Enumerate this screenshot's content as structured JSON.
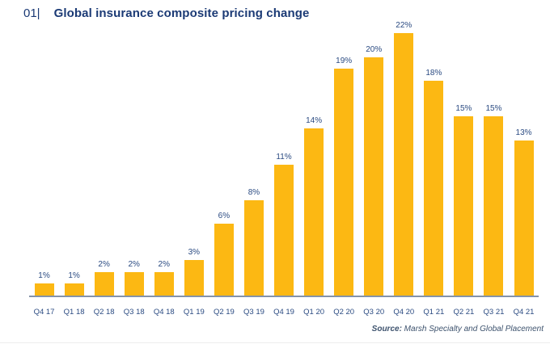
{
  "header": {
    "figure_number": "01|",
    "title": "Global insurance composite pricing change"
  },
  "chart_data": {
    "type": "bar",
    "title": "Global insurance composite pricing change",
    "categories": [
      "Q4 17",
      "Q1 18",
      "Q2 18",
      "Q3 18",
      "Q4 18",
      "Q1 19",
      "Q2 19",
      "Q3 19",
      "Q4 19",
      "Q1 20",
      "Q2 20",
      "Q3 20",
      "Q4 20",
      "Q1 21",
      "Q2 21",
      "Q3 21",
      "Q4 21"
    ],
    "values": [
      1,
      1,
      2,
      2,
      2,
      3,
      6,
      8,
      11,
      14,
      19,
      20,
      22,
      18,
      15,
      15,
      13
    ],
    "value_labels": [
      "1%",
      "1%",
      "2%",
      "2%",
      "2%",
      "3%",
      "6%",
      "8%",
      "11%",
      "14%",
      "19%",
      "20%",
      "22%",
      "18%",
      "15%",
      "15%",
      "13%"
    ],
    "xlabel": "",
    "ylabel": "",
    "ylim": [
      0,
      22
    ],
    "grid": false,
    "legend": "none",
    "data_labels": "above-bars",
    "bar_color": "#FCB813",
    "value_label_color": "#2B4B82",
    "tick_label_color": "#2B4B82",
    "axis_line_color": "#8593A9"
  },
  "source": {
    "label": "Source:",
    "text": " Marsh Specialty and Global Placement"
  },
  "colors": {
    "background": "#FFFFFF",
    "title": "#1B3A75"
  }
}
